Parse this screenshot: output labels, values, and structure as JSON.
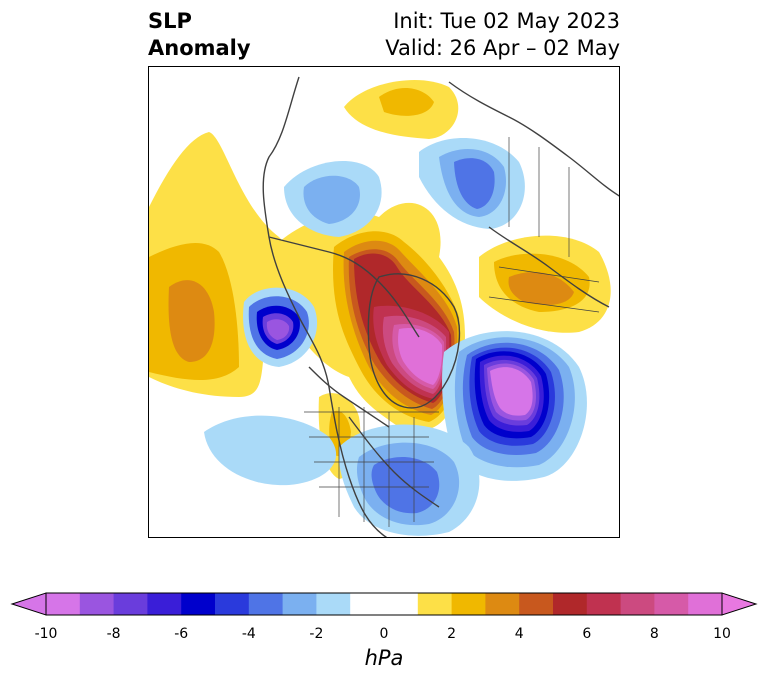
{
  "title": {
    "variable": "SLP",
    "type": "Anomaly",
    "init": "Init: Tue 02 May 2023",
    "valid": "Valid: 26 Apr – 02 May"
  },
  "colorbar": {
    "unit": "hPa",
    "tick_labels": [
      "-10",
      "-8",
      "-6",
      "-4",
      "-2",
      "0",
      "2",
      "4",
      "6",
      "8",
      "10"
    ],
    "min": -10,
    "max": 10,
    "step": 1,
    "extend": "both",
    "colors": [
      "#d675e8",
      "#9a55e0",
      "#6a3ddc",
      "#3a1ed8",
      "#0000cc",
      "#2a3adc",
      "#4f74e6",
      "#7bb0f0",
      "#aadaf8",
      "#ffffff",
      "#ffffff",
      "#fde047",
      "#f0b800",
      "#dd8a12",
      "#c8581e",
      "#b0282a",
      "#c03250",
      "#cc4a80",
      "#d65aa8",
      "#e070d8"
    ],
    "under_color": "#d675e8",
    "over_color": "#e878e0"
  },
  "map": {
    "projection": "north-polar-stereographic",
    "features": [
      "coastlines",
      "country-borders",
      "us-state-borders"
    ],
    "colors": {
      "strong_positive": "#e070d8",
      "positive": "#b0282a",
      "mild_positive": "#f0b800",
      "weak_positive": "#fde047",
      "weak_negative": "#aadaf8",
      "negative": "#4f74e6",
      "strong_negative": "#0000cc",
      "very_strong_negative": "#d675e8",
      "coast_line": "#404040"
    }
  }
}
